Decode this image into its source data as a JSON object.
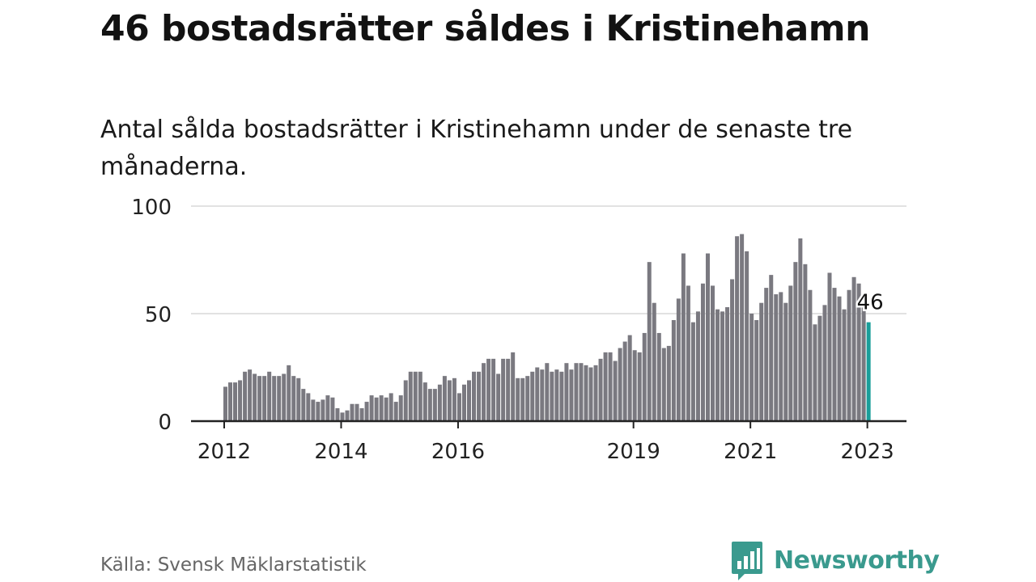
{
  "title": "46 bostadsrätter såldes i Kristinehamn",
  "subtitle": "Antal sålda bostadsrätter i Kristinehamn under de senaste tre månaderna.",
  "source": "Källa: Svensk Mäklarstatistik",
  "brand": "Newsworthy",
  "colors": {
    "bar": "#7a7980",
    "highlight": "#1a9e9a",
    "grid": "#d9d9d9",
    "axis": "#222222",
    "brand": "#3a9a8e"
  },
  "chart_data": {
    "type": "bar",
    "title": "46 bostadsrätter såldes i Kristinehamn",
    "xlabel": "",
    "ylabel": "",
    "ylim": [
      0,
      100
    ],
    "yticks": [
      0,
      50,
      100
    ],
    "grid": true,
    "start": "2012-01",
    "x_ticks": [
      {
        "label": "2012",
        "index": 0
      },
      {
        "label": "2014",
        "index": 24
      },
      {
        "label": "2016",
        "index": 48
      },
      {
        "label": "2019",
        "index": 84
      },
      {
        "label": "2021",
        "index": 108
      },
      {
        "label": "2023",
        "index": 132
      }
    ],
    "highlight_label": "46",
    "values": [
      16,
      18,
      18,
      19,
      23,
      24,
      22,
      21,
      21,
      23,
      21,
      21,
      22,
      26,
      21,
      20,
      15,
      13,
      10,
      9,
      10,
      12,
      11,
      6,
      4,
      5,
      8,
      8,
      6,
      9,
      12,
      11,
      12,
      11,
      13,
      9,
      12,
      19,
      23,
      23,
      23,
      18,
      15,
      15,
      17,
      21,
      19,
      20,
      13,
      17,
      19,
      23,
      23,
      27,
      29,
      29,
      22,
      29,
      29,
      32,
      20,
      20,
      21,
      23,
      25,
      24,
      27,
      23,
      24,
      23,
      27,
      24,
      27,
      27,
      26,
      25,
      26,
      29,
      32,
      32,
      28,
      34,
      37,
      40,
      33,
      32,
      41,
      74,
      55,
      41,
      34,
      35,
      47,
      57,
      78,
      63,
      46,
      51,
      64,
      78,
      63,
      52,
      51,
      53,
      66,
      86,
      87,
      79,
      50,
      47,
      55,
      62,
      68,
      59,
      60,
      55,
      63,
      74,
      85,
      73,
      61,
      45,
      49,
      54,
      69,
      62,
      58,
      52,
      61,
      67,
      64,
      53,
      46
    ]
  }
}
